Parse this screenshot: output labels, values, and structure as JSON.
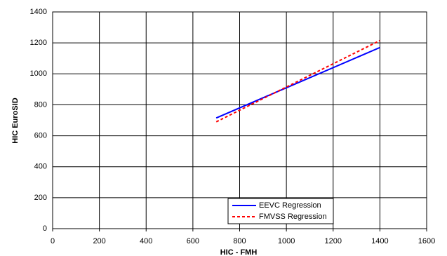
{
  "chart_data": {
    "type": "line",
    "x_label": "HIC - FMH",
    "y_label": "HIC  EuroSID",
    "series": [
      {
        "name": "EEVC Regression",
        "color": "#0000ff",
        "dash": false,
        "x": [
          700,
          1400
        ],
        "values": [
          715,
          1170
        ]
      },
      {
        "name": "FMVSS Regression",
        "color": "#ff0000",
        "dash": true,
        "x": [
          700,
          1400
        ],
        "values": [
          690,
          1215
        ]
      }
    ],
    "xlim": [
      0,
      1600
    ],
    "xticks": [
      0,
      200,
      400,
      600,
      800,
      1000,
      1200,
      1400,
      1600
    ],
    "ylim": [
      0,
      1400
    ],
    "yticks": [
      0,
      200,
      400,
      600,
      800,
      1000,
      1200,
      1400
    ],
    "grid": true,
    "legend": "bottom-center"
  }
}
